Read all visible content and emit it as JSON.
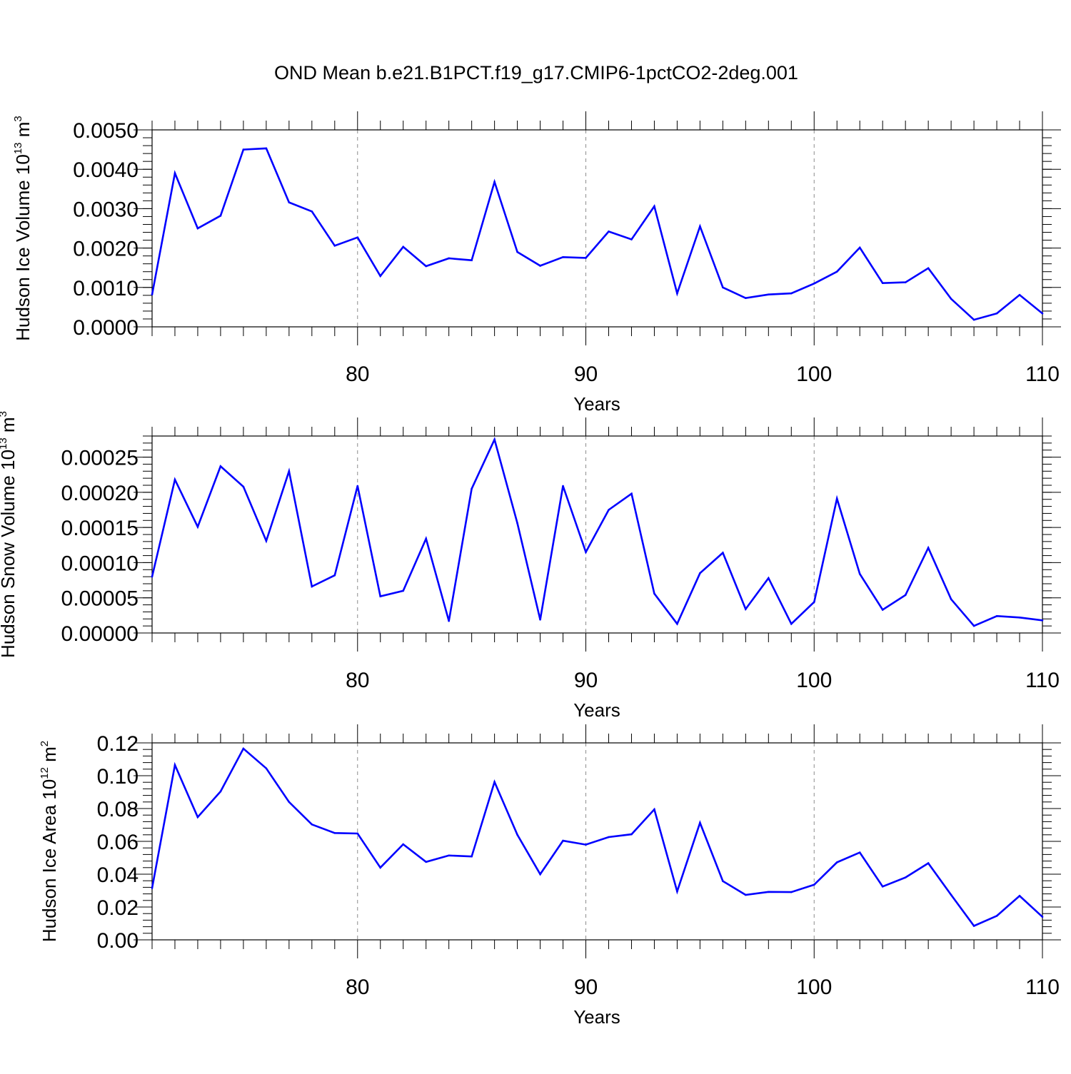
{
  "title": "OND Mean b.e21.B1PCT.f19_g17.CMIP6-1pctCO2-2deg.001",
  "line_color": "#0000ff",
  "chart_data": [
    {
      "type": "line",
      "ylabel": {
        "main": "Hudson Ice Volume 10",
        "sup": "13",
        "unit": " m",
        "unit_sup": "3"
      },
      "xlabel": "Years",
      "xlim": [
        71,
        110
      ],
      "ylim": [
        0,
        0.005
      ],
      "x_ticks": [
        80,
        90,
        100,
        110
      ],
      "x_tick_labels": [
        "80",
        "90",
        "100",
        "110"
      ],
      "y_ticks": [
        0,
        0.001,
        0.002,
        0.003,
        0.004,
        0.005
      ],
      "y_tick_labels": [
        "0.0000",
        "0.0010",
        "0.0020",
        "0.0030",
        "0.0040",
        "0.0050"
      ],
      "y_minor_step": 0.0002,
      "grid_x": [
        80,
        90,
        100
      ],
      "x": [
        71,
        72,
        73,
        74,
        75,
        76,
        77,
        78,
        79,
        80,
        81,
        82,
        83,
        84,
        85,
        86,
        87,
        88,
        89,
        90,
        91,
        92,
        93,
        94,
        95,
        96,
        97,
        98,
        99,
        100,
        101,
        102,
        103,
        104,
        105,
        106,
        107,
        108,
        109,
        110
      ],
      "values": [
        0.00082,
        0.0039,
        0.0025,
        0.00282,
        0.0045,
        0.00453,
        0.00316,
        0.00293,
        0.00206,
        0.00227,
        0.00129,
        0.00203,
        0.00154,
        0.00174,
        0.00169,
        0.00368,
        0.0019,
        0.00155,
        0.00177,
        0.00175,
        0.00242,
        0.00222,
        0.00306,
        0.00085,
        0.00255,
        0.001,
        0.00073,
        0.00082,
        0.00085,
        0.0011,
        0.0014,
        0.00201,
        0.00111,
        0.00113,
        0.00149,
        0.00071,
        0.00018,
        0.00034,
        0.00081,
        0.00034
      ]
    },
    {
      "type": "line",
      "ylabel": {
        "main": "Hudson Snow Volume 10",
        "sup": "13",
        "unit": " m",
        "unit_sup": "3"
      },
      "xlabel": "Years",
      "xlim": [
        71,
        110
      ],
      "ylim": [
        0,
        0.00028
      ],
      "x_ticks": [
        80,
        90,
        100,
        110
      ],
      "x_tick_labels": [
        "80",
        "90",
        "100",
        "110"
      ],
      "y_ticks": [
        0,
        5e-05,
        0.0001,
        0.00015,
        0.0002,
        0.00025
      ],
      "y_tick_labels": [
        "0.00000",
        "0.00005",
        "0.00010",
        "0.00015",
        "0.00020",
        "0.00025"
      ],
      "y_minor_step": 1e-05,
      "grid_x": [
        80,
        90,
        100
      ],
      "x": [
        71,
        72,
        73,
        74,
        75,
        76,
        77,
        78,
        79,
        80,
        81,
        82,
        83,
        84,
        85,
        86,
        87,
        88,
        89,
        90,
        91,
        92,
        93,
        94,
        95,
        96,
        97,
        98,
        99,
        100,
        101,
        102,
        103,
        104,
        105,
        106,
        107,
        108,
        109,
        110
      ],
      "values": [
        8e-05,
        0.000218,
        0.000151,
        0.000237,
        0.000208,
        0.000131,
        0.00023,
        6.6e-05,
        8.2e-05,
        0.000209,
        5.2e-05,
        6e-05,
        0.000134,
        1.7e-05,
        0.000205,
        0.000275,
        0.000156,
        1.9e-05,
        0.000209,
        0.000115,
        0.000175,
        0.000198,
        5.6e-05,
        1.3e-05,
        8.5e-05,
        0.000114,
        3.4e-05,
        7.8e-05,
        1.3e-05,
        4.4e-05,
        0.000191,
        8.4e-05,
        3.3e-05,
        5.4e-05,
        0.000121,
        4.8e-05,
        1e-05,
        2.4e-05,
        2.2e-05,
        1.8e-05
      ]
    },
    {
      "type": "line",
      "ylabel": {
        "main": "Hudson Ice Area 10",
        "sup": "12",
        "unit": " m",
        "unit_sup": "2"
      },
      "xlabel": "Years",
      "xlim": [
        71,
        110
      ],
      "ylim": [
        0,
        0.12
      ],
      "x_ticks": [
        80,
        90,
        100,
        110
      ],
      "x_tick_labels": [
        "80",
        "90",
        "100",
        "110"
      ],
      "y_ticks": [
        0,
        0.02,
        0.04,
        0.06,
        0.08,
        0.1,
        0.12
      ],
      "y_tick_labels": [
        "0.00",
        "0.02",
        "0.04",
        "0.06",
        "0.08",
        "0.10",
        "0.12"
      ],
      "y_minor_step": 0.004,
      "grid_x": [
        80,
        90,
        100
      ],
      "x": [
        71,
        72,
        73,
        74,
        75,
        76,
        77,
        78,
        79,
        80,
        81,
        82,
        83,
        84,
        85,
        86,
        87,
        88,
        89,
        90,
        91,
        92,
        93,
        94,
        95,
        96,
        97,
        98,
        99,
        100,
        101,
        102,
        103,
        104,
        105,
        106,
        107,
        108,
        109,
        110
      ],
      "values": [
        0.0315,
        0.1065,
        0.0748,
        0.0904,
        0.1165,
        0.1045,
        0.084,
        0.0703,
        0.0651,
        0.0648,
        0.044,
        0.0582,
        0.0475,
        0.0514,
        0.0508,
        0.0962,
        0.064,
        0.04,
        0.0604,
        0.058,
        0.0626,
        0.0643,
        0.0795,
        0.0295,
        0.0713,
        0.0358,
        0.0274,
        0.0292,
        0.0291,
        0.0336,
        0.0472,
        0.0532,
        0.0325,
        0.038,
        0.0467,
        0.0274,
        0.0085,
        0.0146,
        0.0268,
        0.014
      ]
    }
  ]
}
